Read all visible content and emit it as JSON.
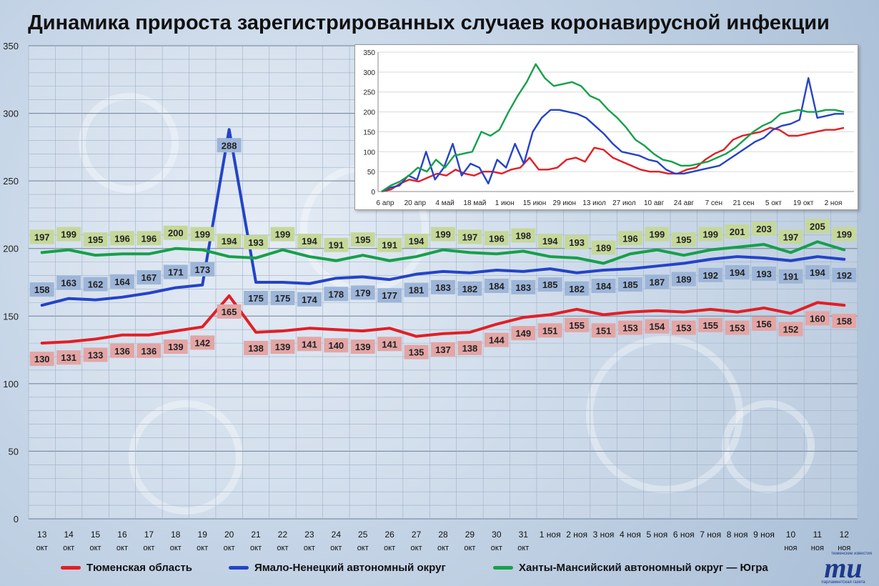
{
  "title": "Динамика прироста зарегистрированных случаев коронавирусной инфекции",
  "logo": {
    "mark": "ти",
    "top": "тюменские известия",
    "bottom": "парламентская газета"
  },
  "chart_data": [
    {
      "type": "line",
      "ylim": [
        0,
        350
      ],
      "yticks": [
        0,
        50,
        100,
        150,
        200,
        250,
        300,
        350
      ],
      "grid": true,
      "legend_position": "bottom",
      "categories": [
        [
          "13",
          "окт"
        ],
        [
          "14",
          "окт"
        ],
        [
          "15",
          "окт"
        ],
        [
          "16",
          "окт"
        ],
        [
          "17",
          "окт"
        ],
        [
          "18",
          "окт"
        ],
        [
          "19",
          "окт"
        ],
        [
          "20",
          "окт"
        ],
        [
          "21",
          "окт"
        ],
        [
          "22",
          "окт"
        ],
        [
          "23",
          "окт"
        ],
        [
          "24",
          "окт"
        ],
        [
          "25",
          "окт"
        ],
        [
          "26",
          "окт"
        ],
        [
          "27",
          "окт"
        ],
        [
          "28",
          "окт"
        ],
        [
          "29",
          "окт"
        ],
        [
          "30",
          "окт"
        ],
        [
          "31",
          "окт"
        ],
        [
          "1 ноя",
          ""
        ],
        [
          "2 ноя",
          ""
        ],
        [
          "3 ноя",
          ""
        ],
        [
          "4 ноя",
          ""
        ],
        [
          "5 ноя",
          ""
        ],
        [
          "6 ноя",
          ""
        ],
        [
          "7 ноя",
          ""
        ],
        [
          "8 ноя",
          ""
        ],
        [
          "9 ноя",
          ""
        ],
        [
          "10",
          "ноя"
        ],
        [
          "11",
          "ноя"
        ],
        [
          "12",
          "ноя"
        ]
      ],
      "series": [
        {
          "name": "Тюменская область",
          "color": "#e31e24",
          "label_bg": "#e3a5a5",
          "values": [
            130,
            131,
            133,
            136,
            136,
            139,
            142,
            165,
            138,
            139,
            141,
            140,
            139,
            141,
            135,
            137,
            138,
            144,
            149,
            151,
            155,
            151,
            153,
            154,
            153,
            155,
            153,
            156,
            152,
            160,
            158
          ]
        },
        {
          "name": "Ямало-Ненецкий автономный округ",
          "color": "#2443c8",
          "label_bg": "#9db5d8",
          "values": [
            158,
            163,
            162,
            164,
            167,
            171,
            173,
            288,
            175,
            175,
            174,
            178,
            179,
            177,
            181,
            183,
            182,
            184,
            183,
            185,
            182,
            184,
            185,
            187,
            189,
            192,
            194,
            193,
            191,
            194,
            192
          ]
        },
        {
          "name": "Ханты-Мансийский автономный округ — Югра",
          "color": "#16a04a",
          "label_bg": "#c5d89a",
          "values": [
            197,
            199,
            195,
            196,
            196,
            200,
            199,
            194,
            193,
            199,
            194,
            191,
            195,
            191,
            194,
            199,
            197,
            196,
            198,
            194,
            193,
            189,
            196,
            199,
            195,
            199,
            201,
            203,
            197,
            205,
            199
          ]
        }
      ]
    },
    {
      "type": "line",
      "ylim": [
        0,
        350
      ],
      "yticks": [
        0,
        50,
        100,
        150,
        200,
        250,
        300,
        350
      ],
      "xticks": [
        "6 апр",
        "20 апр",
        "4 май",
        "18 май",
        "1 июн",
        "15 июн",
        "29 июн",
        "13 июл",
        "27 июл",
        "10 авг",
        "24 авг",
        "7 сен",
        "21 сен",
        "5 окт",
        "19 окт",
        "2 ноя"
      ],
      "series": [
        {
          "name": "Тюменская область",
          "color": "#e31e24",
          "values": [
            0,
            5,
            20,
            30,
            25,
            35,
            45,
            40,
            55,
            45,
            40,
            50,
            50,
            45,
            55,
            60,
            85,
            55,
            55,
            60,
            80,
            85,
            75,
            110,
            105,
            85,
            75,
            65,
            55,
            50,
            50,
            45,
            45,
            55,
            60,
            80,
            95,
            105,
            130,
            140,
            145,
            150,
            160,
            155,
            140,
            140,
            145,
            150,
            155,
            155,
            160
          ]
        },
        {
          "name": "Ямало-Ненецкий автономный округ",
          "color": "#2443c8",
          "values": [
            0,
            10,
            15,
            40,
            30,
            100,
            30,
            60,
            120,
            40,
            70,
            60,
            20,
            80,
            60,
            120,
            70,
            150,
            185,
            205,
            205,
            200,
            195,
            185,
            165,
            145,
            120,
            100,
            95,
            90,
            80,
            75,
            55,
            45,
            45,
            50,
            55,
            60,
            65,
            80,
            95,
            110,
            125,
            135,
            155,
            165,
            170,
            180,
            285,
            185,
            190,
            195,
            195
          ]
        },
        {
          "name": "Ханты-Мансийский автономный округ — Югра",
          "color": "#16a04a",
          "values": [
            0,
            15,
            25,
            40,
            60,
            50,
            80,
            60,
            90,
            95,
            100,
            150,
            140,
            155,
            200,
            240,
            275,
            320,
            285,
            265,
            270,
            275,
            265,
            240,
            230,
            205,
            185,
            160,
            130,
            115,
            95,
            80,
            75,
            65,
            65,
            70,
            75,
            85,
            95,
            110,
            130,
            150,
            165,
            175,
            195,
            200,
            205,
            200,
            200,
            205,
            205,
            200
          ]
        }
      ]
    }
  ]
}
